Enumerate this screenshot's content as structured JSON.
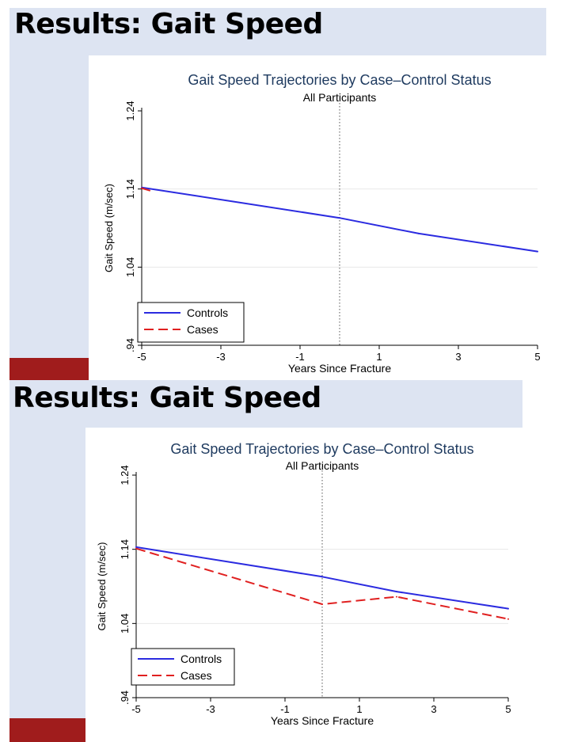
{
  "slides": [
    {
      "title": "Results: Gait Speed",
      "chart_data": {
        "type": "line",
        "title": "Gait Speed Trajectories by Case–Control Status",
        "subtitle": "All Participants",
        "xlabel": "Years Since Fracture",
        "ylabel": "Gait Speed (m/sec)",
        "x_ticks": [
          -5,
          -3,
          -1,
          1,
          3,
          5
        ],
        "y_ticks": [
          0.94,
          1.04,
          1.14,
          1.24
        ],
        "y_tick_labels": [
          ".94",
          "1.04",
          "1.14",
          "1.24"
        ],
        "xlim": [
          -5,
          5
        ],
        "ylim": [
          0.94,
          1.24
        ],
        "reference_line_x": 0,
        "legend_position": "bottom-left",
        "series": [
          {
            "name": "Controls",
            "color": "#2b2be0",
            "style": "solid",
            "x": [
              -5,
              0,
              2,
              5
            ],
            "y": [
              1.142,
              1.103,
              1.083,
              1.06
            ]
          },
          {
            "name": "Cases",
            "color": "#e02020",
            "style": "dashed",
            "x": [
              -5,
              -4.8
            ],
            "y": [
              1.141,
              1.138
            ]
          }
        ]
      }
    },
    {
      "title": "Results: Gait Speed",
      "chart_data": {
        "type": "line",
        "title": "Gait Speed Trajectories by Case–Control Status",
        "subtitle": "All Participants",
        "xlabel": "Years Since Fracture",
        "ylabel": "Gait Speed (m/sec)",
        "x_ticks": [
          -5,
          -3,
          -1,
          1,
          3,
          5
        ],
        "y_ticks": [
          0.94,
          1.04,
          1.14,
          1.24
        ],
        "y_tick_labels": [
          ".94",
          "1.04",
          "1.14",
          "1.24"
        ],
        "xlim": [
          -5,
          5
        ],
        "ylim": [
          0.94,
          1.24
        ],
        "reference_line_x": 0,
        "legend_position": "bottom-left",
        "series": [
          {
            "name": "Controls",
            "color": "#2b2be0",
            "style": "solid",
            "x": [
              -5,
              0,
              2,
              5
            ],
            "y": [
              1.143,
              1.103,
              1.083,
              1.06
            ]
          },
          {
            "name": "Cases",
            "color": "#e02020",
            "style": "dashed",
            "x": [
              -5,
              0,
              2,
              5
            ],
            "y": [
              1.141,
              1.066,
              1.076,
              1.046
            ]
          }
        ]
      }
    }
  ]
}
